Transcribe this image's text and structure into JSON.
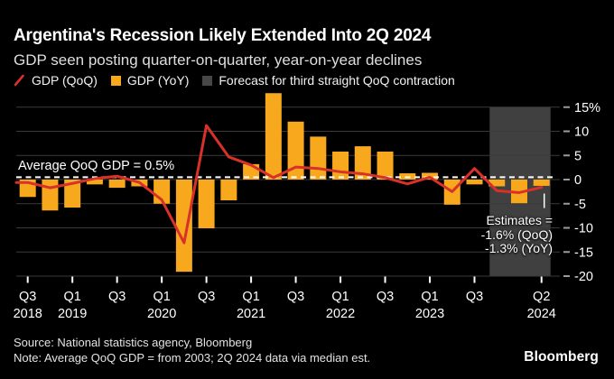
{
  "header": {
    "title": "Argentina's Recession Likely Extended Into 2Q 2024",
    "subtitle": "GDP seen posting quarter-on-quarter, year-on-year declines"
  },
  "legend": {
    "items": [
      {
        "label": "GDP (QoQ)",
        "marker": "red-line"
      },
      {
        "label": "GDP (YoY)",
        "marker": "yellow-square"
      },
      {
        "label": "Forecast for third straight QoQ contraction",
        "marker": "gray-square"
      }
    ]
  },
  "chart_data": {
    "type": "bar+line",
    "categories": [
      "Q3 2018",
      "Q4 2018",
      "Q1 2019",
      "Q2 2019",
      "Q3 2019",
      "Q4 2019",
      "Q1 2020",
      "Q2 2020",
      "Q3 2020",
      "Q4 2020",
      "Q1 2021",
      "Q2 2021",
      "Q3 2021",
      "Q4 2021",
      "Q1 2022",
      "Q2 2022",
      "Q3 2022",
      "Q4 2022",
      "Q1 2023",
      "Q2 2023",
      "Q3 2023",
      "Q4 2023",
      "Q1 2024",
      "Q2 2024"
    ],
    "series": [
      {
        "name": "GDP (QoQ)",
        "type": "line",
        "unit": "%",
        "values": [
          -0.6,
          -1.7,
          -0.8,
          0.2,
          0.7,
          -0.6,
          -4.2,
          -13.1,
          11.2,
          4.7,
          3.0,
          0.4,
          2.6,
          2.3,
          1.6,
          1.2,
          0.4,
          -0.9,
          0.5,
          -2.5,
          2.3,
          -2.3,
          -2.7,
          -1.6
        ]
      },
      {
        "name": "GDP (YoY)",
        "type": "bar",
        "unit": "%",
        "values": [
          -3.6,
          -6.4,
          -5.8,
          -1.0,
          -1.7,
          -1.4,
          -5.0,
          -19.1,
          -10.1,
          -4.3,
          3.2,
          17.9,
          12.0,
          8.9,
          5.8,
          6.9,
          5.8,
          1.3,
          1.4,
          -5.2,
          -1.0,
          -1.4,
          -4.9,
          -1.3
        ]
      }
    ],
    "ylim": [
      -20,
      15
    ],
    "yticks": [
      {
        "v": 15,
        "label": "15%"
      },
      {
        "v": 10,
        "label": "10"
      },
      {
        "v": 5,
        "label": "5"
      },
      {
        "v": 0,
        "label": "0"
      },
      {
        "v": -5,
        "label": "-5"
      },
      {
        "v": -10,
        "label": "-10"
      },
      {
        "v": -15,
        "label": "-15"
      },
      {
        "v": -20,
        "label": "-20"
      }
    ],
    "xticks": [
      {
        "i": 0,
        "q": "Q3",
        "year": "2018"
      },
      {
        "i": 2,
        "q": "Q1",
        "year": "2019"
      },
      {
        "i": 4,
        "q": "Q3",
        "year": ""
      },
      {
        "i": 6,
        "q": "Q1",
        "year": "2020"
      },
      {
        "i": 8,
        "q": "Q3",
        "year": ""
      },
      {
        "i": 10,
        "q": "Q1",
        "year": "2021"
      },
      {
        "i": 12,
        "q": "Q3",
        "year": ""
      },
      {
        "i": 14,
        "q": "Q1",
        "year": "2022"
      },
      {
        "i": 16,
        "q": "Q3",
        "year": ""
      },
      {
        "i": 18,
        "q": "Q1",
        "year": "2023"
      },
      {
        "i": 20,
        "q": "Q3",
        "year": ""
      },
      {
        "i": 23,
        "q": "Q2",
        "year": "2024"
      }
    ],
    "average_line": {
      "value": 0.5,
      "label": "Average QoQ GDP = 0.5%"
    },
    "forecast_band": {
      "start_index": 21,
      "end_index": 23
    },
    "annotation": {
      "line1": "Estimates =",
      "line2": "-1.6% (QoQ)",
      "line3": "-1.3% (YoY)"
    },
    "estimate_marker": {
      "index": 23,
      "from": -2.9,
      "to": -5.9
    },
    "grid": true,
    "legend_position": "top"
  },
  "footer": {
    "source": "Source: National statistics agency, Bloomberg",
    "note": "Note: Average QoQ GDP = from 2003; 2Q 2024 data via median est.",
    "logo": "Bloomberg"
  },
  "colors": {
    "background": "#000000",
    "bar_yellow": "#f7a81c",
    "line_red": "#d8312a",
    "forecast_gray": "#404040",
    "grid": "#3a3a3a",
    "axis_dash": "#9b9b9b",
    "text_white": "#ffffff",
    "subtitle_gray": "#dedede",
    "footer_gray": "#e3e3e3"
  }
}
